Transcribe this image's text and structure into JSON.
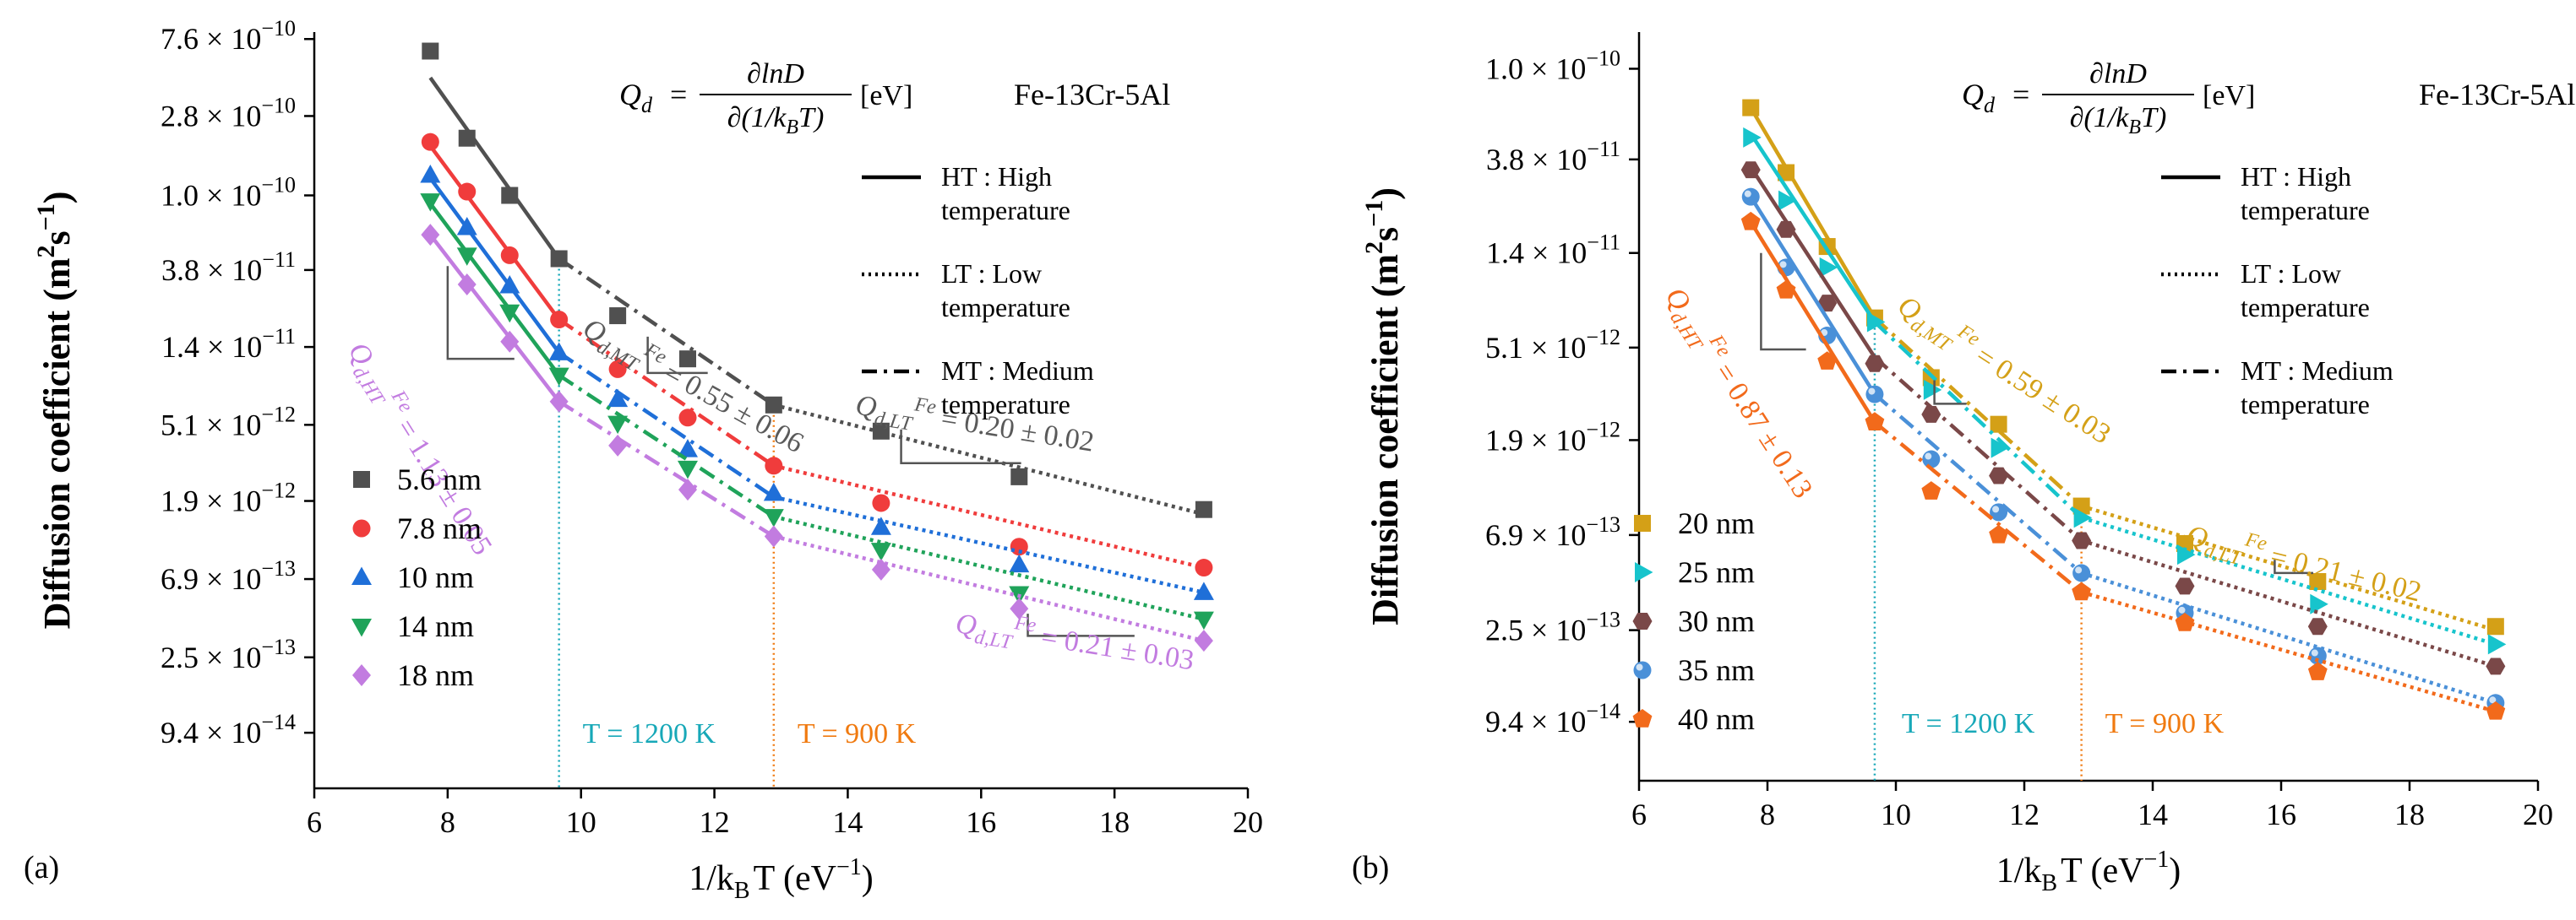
{
  "chart_data": [
    {
      "type": "scatter",
      "panel_label": "(a)",
      "xlabel": "1/k",
      "xlabel_sub": "B",
      "xlabel_tail": "T (eV",
      "xlabel_exp": "−1",
      "xlabel_close": ")",
      "ylabel": "Diffusion coefficient (m",
      "ylabel_exp1": "2",
      "ylabel_mid": "s",
      "ylabel_exp2": "−1",
      "ylabel_close": ")",
      "xlim": [
        6,
        20
      ],
      "xticks": [
        6,
        8,
        10,
        12,
        14,
        16,
        18,
        20
      ],
      "ylog_lim": [
        -13.34,
        -9.08
      ],
      "yticks": [
        {
          "label": "7.6 × 10",
          "exp": "−10",
          "value": 7.6e-10
        },
        {
          "label": "2.8 × 10",
          "exp": "−10",
          "value": 2.8e-10
        },
        {
          "label": "1.0 × 10",
          "exp": "−10",
          "value": 1e-10
        },
        {
          "label": "3.8 × 10",
          "exp": "−11",
          "value": 3.8e-11
        },
        {
          "label": "1.4 × 10",
          "exp": "−11",
          "value": 1.4e-11
        },
        {
          "label": "5.1 × 10",
          "exp": "−12",
          "value": 5.1e-12
        },
        {
          "label": "1.9 × 10",
          "exp": "−12",
          "value": 1.9e-12
        },
        {
          "label": "6.9 × 10",
          "exp": "−13",
          "value": 6.9e-13
        },
        {
          "label": "2.5 × 10",
          "exp": "−13",
          "value": 2.5e-13
        },
        {
          "label": "9.4 × 10",
          "exp": "−14",
          "value": 9.4e-14
        }
      ],
      "formula": {
        "lhs": "Q",
        "lhs_sub": "d",
        "eq": "=",
        "num": "∂lnD",
        "den": "∂(1/k",
        "den_sub": "B",
        "den_tail": "T)",
        "unit": "[eV]"
      },
      "material": "Fe-13Cr-5Al",
      "legend_styles": [
        {
          "style": "solid",
          "label1": "HT : High",
          "label2": "temperature"
        },
        {
          "style": "dotted",
          "label1": "LT : Low",
          "label2": "temperature"
        },
        {
          "style": "dashdot",
          "label1": "MT : Medium",
          "label2": "temperature"
        }
      ],
      "vlines": [
        {
          "x": 9.67,
          "label": "T = 1200 K",
          "color": "#17a8b8"
        },
        {
          "x": 12.89,
          "label": "T = 900 K",
          "color": "#f07a10"
        }
      ],
      "series": [
        {
          "name": "5.6 nm",
          "marker": "square",
          "color": "#505050",
          "x": [
            7.74,
            8.29,
            8.93,
            9.67,
            10.55,
            11.6,
            12.89,
            14.5,
            16.57,
            19.34
          ],
          "y": [
            6.5e-10,
            2.1e-10,
            1e-10,
            4.4e-11,
            2.1e-11,
            1.2e-11,
            6.6e-12,
            4.7e-12,
            2.6e-12,
            1.7e-12
          ],
          "fit_x": [
            7.74,
            9.67,
            12.89,
            19.34
          ],
          "fit_y": [
            4.6e-10,
            4.4e-11,
            6.6e-12,
            1.6e-12
          ]
        },
        {
          "name": "7.8 nm",
          "marker": "circle",
          "color": "#f03c3c",
          "x": [
            7.74,
            8.29,
            8.93,
            9.67,
            10.55,
            11.6,
            12.89,
            14.5,
            16.57,
            19.34
          ],
          "y": [
            2e-10,
            1.05e-10,
            4.6e-11,
            2e-11,
            1.05e-11,
            5.6e-12,
            3e-12,
            1.85e-12,
            1.05e-12,
            8e-13
          ],
          "fit_x": [
            7.74,
            9.67,
            12.89,
            19.34
          ],
          "fit_y": [
            1.9e-10,
            2e-11,
            3e-12,
            8e-13
          ]
        },
        {
          "name": "10 nm",
          "marker": "triangle-up",
          "color": "#1f6fd8",
          "x": [
            7.74,
            8.29,
            8.93,
            9.67,
            10.55,
            11.6,
            12.89,
            14.5,
            16.57,
            19.34
          ],
          "y": [
            1.3e-10,
            6.6e-11,
            3.1e-11,
            1.3e-11,
            7.1e-12,
            3.7e-12,
            2.1e-12,
            1.35e-12,
            8.3e-13,
            5.8e-13
          ],
          "fit_x": [
            7.74,
            9.67,
            12.89,
            19.34
          ],
          "fit_y": [
            1.25e-10,
            1.3e-11,
            2e-12,
            5.8e-13
          ]
        },
        {
          "name": "14 nm",
          "marker": "triangle-down",
          "color": "#1fa35a",
          "x": [
            7.74,
            8.29,
            8.93,
            9.67,
            10.55,
            11.6,
            12.89,
            14.5,
            16.57,
            19.34
          ],
          "y": [
            9.3e-11,
            4.6e-11,
            2.2e-11,
            9.7e-12,
            5.2e-12,
            2.9e-12,
            1.55e-12,
            1e-12,
            5.7e-13,
            4.1e-13
          ],
          "fit_x": [
            7.74,
            9.67,
            12.89,
            19.34
          ],
          "fit_y": [
            9e-11,
            9.7e-12,
            1.55e-12,
            4.1e-13
          ]
        },
        {
          "name": "18 nm",
          "marker": "diamond",
          "color": "#c27ce0",
          "x": [
            7.74,
            8.29,
            8.93,
            9.67,
            10.55,
            11.6,
            12.89,
            14.5,
            16.57,
            19.34
          ],
          "y": [
            6e-11,
            3.15e-11,
            1.5e-11,
            6.9e-12,
            3.9e-12,
            2.2e-12,
            1.2e-12,
            7.8e-13,
            4.7e-13,
            3.1e-13
          ],
          "fit_x": [
            7.74,
            9.67,
            12.89,
            19.34
          ],
          "fit_y": [
            6e-11,
            6.9e-12,
            1.2e-12,
            3.1e-13
          ]
        }
      ],
      "annotations": [
        {
          "id": "mt",
          "q": "Q",
          "sub": "d,MT",
          "sup": "Fe",
          "val": " = 0.55 ± 0.06",
          "color": "#5a5a5a",
          "x": 10.0,
          "ylog": -10.78,
          "angle": 29
        },
        {
          "id": "lt1",
          "q": "Q",
          "sub": "d,LT",
          "sup": "Fe",
          "val": " = 0.20 ± 0.02",
          "color": "#5a5a5a",
          "x": 14.1,
          "ylog": -11.23,
          "angle": 9
        },
        {
          "id": "ht",
          "q": "Q",
          "sub": "d,HT",
          "sup": "Fe",
          "val": " = 1.13 ± 0.05",
          "color": "#c27ce0",
          "x": 6.5,
          "ylog": -10.87,
          "angle": 58
        },
        {
          "id": "lt2",
          "q": "Q",
          "sub": "d,LT",
          "sup": "Fe",
          "val": " = 0.21 ± 0.03",
          "color": "#c27ce0",
          "x": 15.6,
          "ylog": -12.46,
          "angle": 9
        }
      ]
    },
    {
      "type": "scatter",
      "panel_label": "(b)",
      "xlabel": "1/k",
      "xlabel_sub": "B",
      "xlabel_tail": "T (eV",
      "xlabel_exp": "−1",
      "xlabel_close": ")",
      "ylabel": "Diffusion coefficient (m",
      "ylabel_exp1": "2",
      "ylabel_mid": "s",
      "ylabel_exp2": "−1",
      "ylabel_close": ")",
      "xlim": [
        6,
        20
      ],
      "xticks": [
        6,
        8,
        10,
        12,
        14,
        16,
        18,
        20
      ],
      "ylog_lim": [
        -13.3,
        -9.83
      ],
      "yticks": [
        {
          "label": "1.0 × 10",
          "exp": "−10",
          "value": 1e-10
        },
        {
          "label": "3.8 × 10",
          "exp": "−11",
          "value": 3.8e-11
        },
        {
          "label": "1.4 × 10",
          "exp": "−11",
          "value": 1.4e-11
        },
        {
          "label": "5.1 × 10",
          "exp": "−12",
          "value": 5.1e-12
        },
        {
          "label": "1.9 × 10",
          "exp": "−12",
          "value": 1.9e-12
        },
        {
          "label": "6.9 × 10",
          "exp": "−13",
          "value": 6.9e-13
        },
        {
          "label": "2.5 × 10",
          "exp": "−13",
          "value": 2.5e-13
        },
        {
          "label": "9.4 × 10",
          "exp": "−14",
          "value": 9.4e-14
        }
      ],
      "formula": {
        "lhs": "Q",
        "lhs_sub": "d",
        "eq": "=",
        "num": "∂lnD",
        "den": "∂(1/k",
        "den_sub": "B",
        "den_tail": "T)",
        "unit": "[eV]"
      },
      "material": "Fe-13Cr-5Al",
      "legend_styles": [
        {
          "style": "solid",
          "label1": "HT : High",
          "label2": "temperature"
        },
        {
          "style": "dotted",
          "label1": "LT : Low",
          "label2": "temperature"
        },
        {
          "style": "dashdot",
          "label1": "MT : Medium",
          "label2": "temperature"
        }
      ],
      "vlines": [
        {
          "x": 9.67,
          "label": "T = 1200 K",
          "color": "#17a8b8"
        },
        {
          "x": 12.89,
          "label": "T = 900 K",
          "color": "#f07a10"
        }
      ],
      "series": [
        {
          "name": "20 nm",
          "marker": "square",
          "color": "#d4a017",
          "x": [
            7.74,
            8.29,
            8.93,
            9.67,
            10.55,
            11.6,
            12.89,
            14.5,
            16.57,
            19.34
          ],
          "y": [
            6.6e-11,
            3.3e-11,
            1.5e-11,
            7e-12,
            3.7e-12,
            2.25e-12,
            9.4e-13,
            6.3e-13,
            4.2e-13,
            2.6e-13
          ],
          "fit_x": [
            7.74,
            9.67,
            12.89,
            19.34
          ],
          "fit_y": [
            6.6e-11,
            7e-12,
            9.4e-13,
            2.5e-13
          ]
        },
        {
          "name": "25 nm",
          "marker": "triangle-right",
          "color": "#17c4cc",
          "x": [
            7.74,
            8.29,
            8.93,
            9.67,
            10.55,
            11.6,
            12.89,
            14.5,
            16.57,
            19.34
          ],
          "y": [
            4.8e-11,
            2.45e-11,
            1.2e-11,
            6.7e-12,
            3.25e-12,
            1.75e-12,
            8.3e-13,
            5.6e-13,
            3.3e-13,
            2.15e-13
          ],
          "fit_x": [
            7.74,
            9.67,
            12.89,
            19.34
          ],
          "fit_y": [
            5e-11,
            6.7e-12,
            8.3e-13,
            2.15e-13
          ]
        },
        {
          "name": "30 nm",
          "marker": "hexagon",
          "color": "#7a4848",
          "x": [
            7.74,
            8.29,
            8.93,
            9.67,
            10.55,
            11.6,
            12.89,
            14.5,
            16.57,
            19.34
          ],
          "y": [
            3.4e-11,
            1.8e-11,
            8.2e-12,
            4.3e-12,
            2.5e-12,
            1.3e-12,
            6.5e-13,
            4e-13,
            2.6e-13,
            1.7e-13
          ],
          "fit_x": [
            7.74,
            9.67,
            12.89,
            19.34
          ],
          "fit_y": [
            3.5e-11,
            4.6e-12,
            6.5e-13,
            1.7e-13
          ]
        },
        {
          "name": "35 nm",
          "marker": "sphere",
          "color": "#4a90d8",
          "x": [
            7.74,
            8.29,
            8.93,
            9.67,
            10.55,
            11.6,
            12.89,
            14.5,
            16.57,
            19.34
          ],
          "y": [
            2.55e-11,
            1.2e-11,
            5.8e-12,
            3.1e-12,
            1.55e-12,
            8.8e-13,
            4.6e-13,
            3e-13,
            1.9e-13,
            1.15e-13
          ],
          "fit_x": [
            7.74,
            9.67,
            12.89,
            19.34
          ],
          "fit_y": [
            2.55e-11,
            3.1e-12,
            4.6e-13,
            1.15e-13
          ]
        },
        {
          "name": "40 nm",
          "marker": "pentagon",
          "color": "#f26a1b",
          "x": [
            7.74,
            8.29,
            8.93,
            9.67,
            10.55,
            11.6,
            12.89,
            14.5,
            16.57,
            19.34
          ],
          "y": [
            1.95e-11,
            9.4e-12,
            4.4e-12,
            2.3e-12,
            1.1e-12,
            6.9e-13,
            3.75e-13,
            2.7e-13,
            1.6e-13,
            1.05e-13
          ],
          "fit_x": [
            7.74,
            9.67,
            12.89,
            19.34
          ],
          "fit_y": [
            1.95e-11,
            2.3e-12,
            3.75e-13,
            1.05e-13
          ]
        }
      ],
      "annotations": [
        {
          "id": "mt",
          "q": "Q",
          "sub": "d,MT",
          "sup": "Fe",
          "val": " = 0.59 ± 0.03",
          "color": "#d4a017",
          "x": 10.0,
          "ylog": -11.12,
          "angle": 33
        },
        {
          "id": "lt1",
          "q": "Q",
          "sub": "d,LT",
          "sup": "Fe",
          "val": " = 0.21 ± 0.02",
          "color": "#d4a017",
          "x": 14.5,
          "ylog": -12.2,
          "angle": 14
        },
        {
          "id": "ht",
          "q": "Q",
          "sub": "d,HT",
          "sup": "Fe",
          "val": " = 0.87 ± 0.13",
          "color": "#f26a1b",
          "x": 6.4,
          "ylog": -11.05,
          "angle": 57
        }
      ]
    }
  ]
}
